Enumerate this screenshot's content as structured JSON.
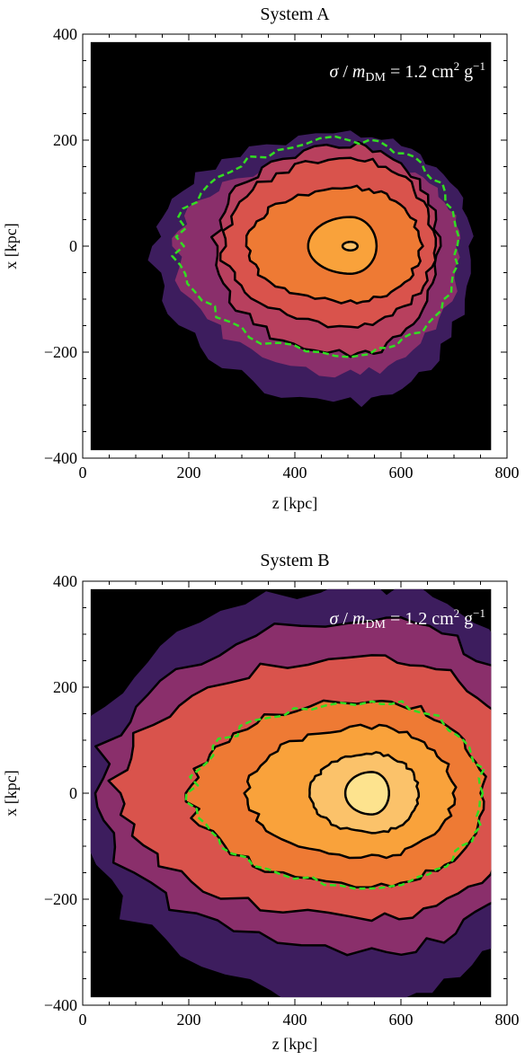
{
  "chart_data": [
    {
      "type": "heatmap",
      "subtype": "filled-contour",
      "title": "System A",
      "annotation": "σ / mDM = 1.2 cm² g⁻¹",
      "annotation_parts": [
        "σ",
        " / ",
        "m",
        "DM",
        " = 1.2 cm",
        "2",
        " g",
        "−1"
      ],
      "xlabel": "z [kpc]",
      "ylabel": "x [kpc]",
      "xlim": [
        0,
        800
      ],
      "ylim": [
        -400,
        400
      ],
      "data_extent": {
        "x": [
          15,
          770
        ],
        "y": [
          -385,
          385
        ]
      },
      "x_ticks": [
        "0",
        "200",
        "400",
        "600",
        "800"
      ],
      "y_ticks": [
        "400",
        "200",
        "0",
        "−200",
        "−400"
      ],
      "x_tick_values": [
        0,
        200,
        400,
        600,
        800
      ],
      "y_tick_values": [
        400,
        200,
        0,
        -200,
        -400
      ],
      "background_color": "#000000",
      "center": [
        505,
        0
      ],
      "levels": [
        {
          "color": "#3d1d5e",
          "line": "none",
          "hz": 370,
          "top": 210,
          "bottom": 295
        },
        {
          "color": "#8a2f6b",
          "line": "none",
          "hz": 330,
          "top": 165,
          "bottom": 240
        },
        {
          "color": "#b8405e",
          "line": "black",
          "hz": 255,
          "top": 190,
          "bottom": 205
        },
        {
          "color": "#b8405e",
          "line": "green-dashed",
          "hz": 325,
          "top": 200,
          "bottom": 205
        },
        {
          "color": "#d9534c",
          "line": "black",
          "hz": 240,
          "top": 165,
          "bottom": 150
        },
        {
          "color": "#ee7a34",
          "line": "black",
          "hz": 195,
          "top": 110,
          "bottom": 105
        },
        {
          "color": "#f9a23b",
          "line": "black",
          "hz": 80,
          "top": 55,
          "bottom": 52
        },
        {
          "color": "#fbc26a",
          "line": "black",
          "hz": 15,
          "top": 8,
          "bottom": 8
        }
      ]
    },
    {
      "type": "heatmap",
      "subtype": "filled-contour",
      "title": "System B",
      "annotation": "σ / mDM = 1.2 cm² g⁻¹",
      "annotation_parts": [
        "σ",
        " / ",
        "m",
        "DM",
        " = 1.2 cm",
        "2",
        " g",
        "−1"
      ],
      "xlabel": "z [kpc]",
      "ylabel": "x [kpc]",
      "xlim": [
        0,
        800
      ],
      "ylim": [
        -400,
        400
      ],
      "data_extent": {
        "x": [
          15,
          770
        ],
        "y": [
          -385,
          385
        ]
      },
      "x_ticks": [
        "0",
        "200",
        "400",
        "600",
        "800"
      ],
      "y_ticks": [
        "400",
        "200",
        "0",
        "−200",
        "−400"
      ],
      "x_tick_values": [
        0,
        200,
        400,
        600,
        800
      ],
      "y_tick_values": [
        400,
        200,
        0,
        -200,
        -400
      ],
      "background_color": "#000000",
      "center": [
        545,
        0
      ],
      "levels": [
        {
          "color": "#3d1d5e",
          "line": "none",
          "hz": 560,
          "top": 390,
          "bottom": 400
        },
        {
          "color": "#8a2f6b",
          "line": "black",
          "hz": 520,
          "top": 330,
          "bottom": 300
        },
        {
          "color": "#d9534c",
          "line": "black",
          "hz": 480,
          "top": 260,
          "bottom": 235
        },
        {
          "color": "#ee7a34",
          "line": "black",
          "hz": 340,
          "top": 175,
          "bottom": 175
        },
        {
          "color": "#ee7a34",
          "line": "green-dashed",
          "hz": 340,
          "top": 173,
          "bottom": 175
        },
        {
          "color": "#f9a23b",
          "line": "black",
          "hz": 235,
          "top": 125,
          "bottom": 120
        },
        {
          "color": "#fbc26a",
          "line": "black",
          "hz": 115,
          "top": 75,
          "bottom": 75
        },
        {
          "color": "#fde38e",
          "line": "black",
          "hz": 50,
          "top": 40,
          "bottom": 40
        }
      ]
    }
  ]
}
